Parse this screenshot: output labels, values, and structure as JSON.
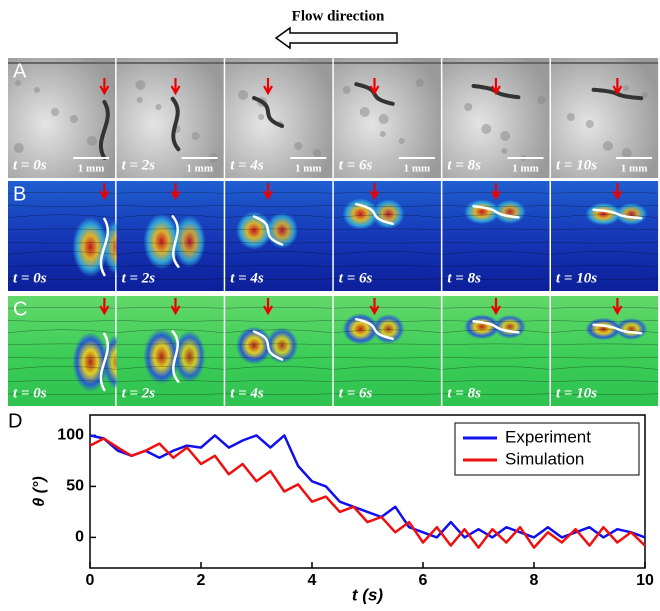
{
  "figure": {
    "title": "Flow direction",
    "panels": [
      {
        "label": "A",
        "times": [
          "t = 0s",
          "t = 2s",
          "t = 4s",
          "t = 6s",
          "t = 8s",
          "t = 10s"
        ],
        "scale_label": "1 mm"
      },
      {
        "label": "B",
        "times": [
          "t = 0s",
          "t = 2s",
          "t = 4s",
          "t = 6s",
          "t = 8s",
          "t = 10s"
        ]
      },
      {
        "label": "C",
        "times": [
          "t = 0s",
          "t = 2s",
          "t = 4s",
          "t = 6s",
          "t = 8s",
          "t = 10s"
        ]
      }
    ]
  },
  "chart_data": {
    "type": "line",
    "label": "D",
    "xlabel": "t (s)",
    "ylabel": "θ (°)",
    "x": [
      0,
      0.25,
      0.5,
      0.75,
      1,
      1.25,
      1.5,
      1.75,
      2,
      2.25,
      2.5,
      2.75,
      3,
      3.25,
      3.5,
      3.75,
      4,
      4.25,
      4.5,
      4.75,
      5,
      5.25,
      5.5,
      5.75,
      6,
      6.25,
      6.5,
      6.75,
      7,
      7.25,
      7.5,
      7.75,
      8,
      8.25,
      8.5,
      8.75,
      9,
      9.25,
      9.5,
      9.75,
      10
    ],
    "series": [
      {
        "name": "Experiment",
        "color": "#1010ee",
        "values": [
          100,
          97,
          85,
          80,
          85,
          78,
          85,
          90,
          88,
          100,
          88,
          95,
          100,
          88,
          100,
          70,
          55,
          50,
          35,
          30,
          25,
          20,
          30,
          10,
          5,
          0,
          15,
          0,
          8,
          0,
          10,
          5,
          0,
          10,
          0,
          5,
          10,
          0,
          8,
          5,
          0
        ]
      },
      {
        "name": "Simulation",
        "color": "#ee1010",
        "values": [
          90,
          97,
          88,
          80,
          85,
          92,
          78,
          88,
          72,
          80,
          62,
          72,
          55,
          65,
          45,
          52,
          35,
          40,
          25,
          30,
          15,
          20,
          5,
          15,
          -5,
          10,
          -8,
          8,
          -10,
          8,
          -5,
          10,
          -10,
          5,
          -5,
          8,
          -8,
          10,
          -5,
          5,
          -8
        ]
      }
    ],
    "xlim": [
      0,
      10
    ],
    "xticks": [
      0,
      2,
      4,
      6,
      8,
      10
    ],
    "ylim": [
      -30,
      120
    ],
    "yticks": [
      0,
      50,
      100
    ],
    "legend": "upper right"
  }
}
